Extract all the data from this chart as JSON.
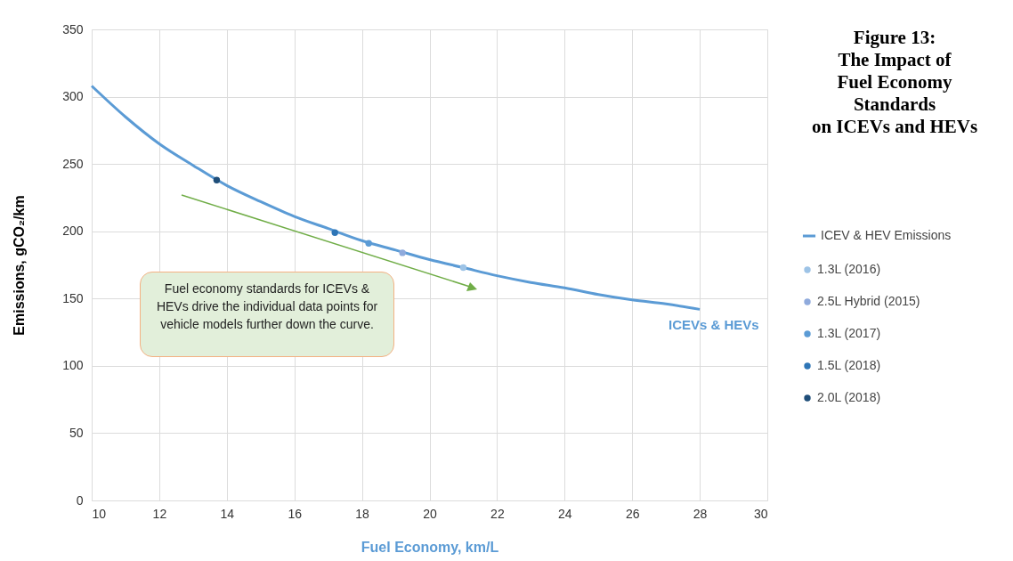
{
  "chart_data": {
    "type": "line",
    "title": "Figure 13:\nThe Impact of\nFuel Economy\nStandards\non ICEVs and HEVs",
    "xlabel": "Fuel Economy, km/L",
    "ylabel": "Emissions, gCO₂/km",
    "x": [
      10,
      11,
      12,
      13,
      14,
      15,
      16,
      17,
      18,
      19,
      20,
      21,
      22,
      23,
      24,
      25,
      26,
      27,
      28
    ],
    "series": [
      {
        "name": "ICEV & HEV Emissions",
        "type": "line",
        "color": "#5b9bd5",
        "values": [
          308,
          285,
          265,
          249,
          234,
          222,
          211,
          202,
          193,
          186,
          179,
          173,
          167,
          162,
          158,
          153,
          149,
          146,
          142
        ]
      },
      {
        "name": "1.3L (2016)",
        "type": "scatter",
        "color": "#9dc3e6",
        "x": [
          21
        ],
        "values": [
          173
        ]
      },
      {
        "name": "2.5L Hybrid (2015)",
        "type": "scatter",
        "color": "#8faadc",
        "x": [
          19.2
        ],
        "values": [
          184
        ]
      },
      {
        "name": "1.3L (2017)",
        "type": "scatter",
        "color": "#5b9bd5",
        "x": [
          18.2
        ],
        "values": [
          191
        ]
      },
      {
        "name": "1.5L (2018)",
        "type": "scatter",
        "color": "#2e75b6",
        "x": [
          17.2
        ],
        "values": [
          199
        ]
      },
      {
        "name": "2.0L (2018)",
        "type": "scatter",
        "color": "#1f4e79",
        "x": [
          13.7
        ],
        "values": [
          238
        ]
      }
    ],
    "xlim": [
      10,
      30
    ],
    "xticks": [
      10,
      12,
      14,
      16,
      18,
      20,
      22,
      24,
      26,
      28,
      30
    ],
    "ylim": [
      0,
      350
    ],
    "yticks": [
      0,
      50,
      100,
      150,
      200,
      250,
      300,
      350
    ],
    "grid": true,
    "legend": "right",
    "annotations": [
      "Fuel economy standards for ICEVs & HEVs  drive the individual data points for vehicle models further down the curve.",
      "ICEVs & HEVs"
    ]
  }
}
